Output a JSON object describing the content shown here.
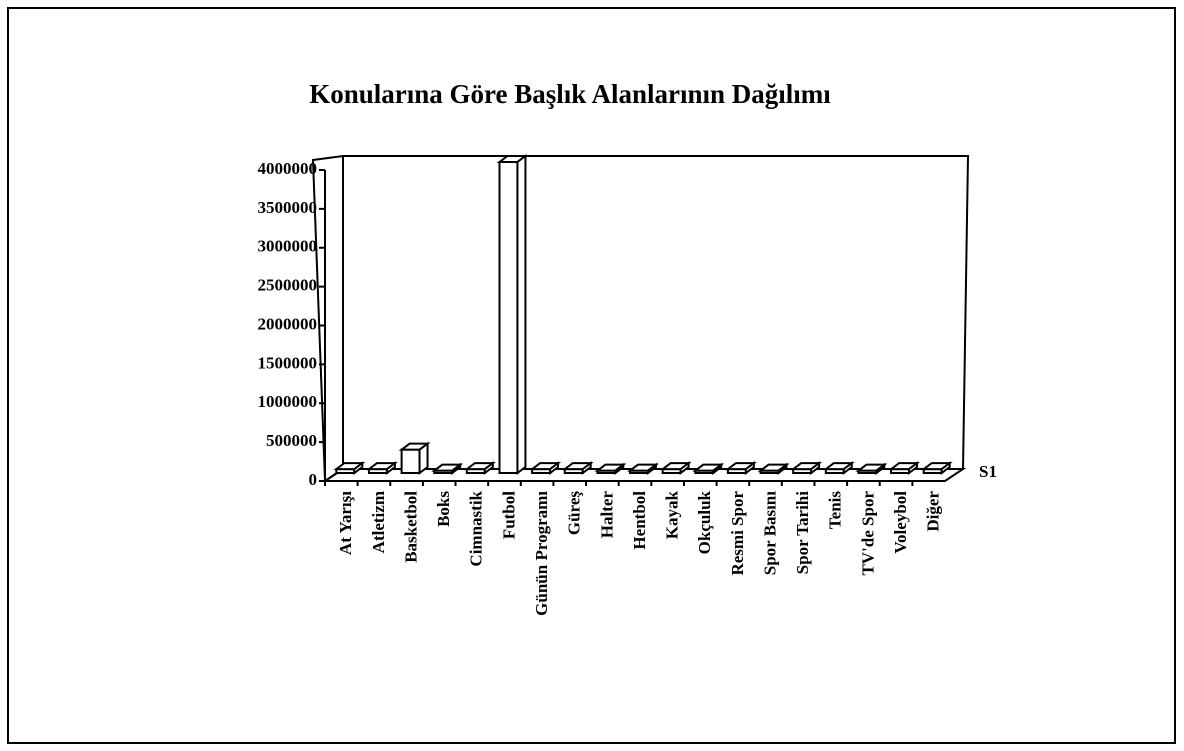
{
  "chart_data": {
    "type": "bar3d",
    "title": "Konularına Göre Başlık Alanlarının Dağılımı",
    "categories": [
      "At Yarışı",
      "Atletizm",
      "Basketbol",
      "Boks",
      "Cimnastik",
      "Futbol",
      "Günün Programı",
      "Güreş",
      "Halter",
      "Hentbol",
      "Kayak",
      "Okçuluk",
      "Resmi Spor",
      "Spor Basını",
      "Spor Tarihi",
      "Tenis",
      "TV'de Spor",
      "Voleybol",
      "Diğer"
    ],
    "series": [
      {
        "name": "S1",
        "color": "#ffffff",
        "values": [
          50000,
          50000,
          300000,
          30000,
          50000,
          4000000,
          50000,
          50000,
          30000,
          30000,
          50000,
          30000,
          50000,
          30000,
          50000,
          50000,
          30000,
          50000,
          50000
        ]
      }
    ],
    "ylim": [
      0,
      4000000
    ],
    "yticks": [
      0,
      500000,
      1000000,
      1500000,
      2000000,
      2500000,
      3000000,
      3500000,
      4000000
    ]
  }
}
